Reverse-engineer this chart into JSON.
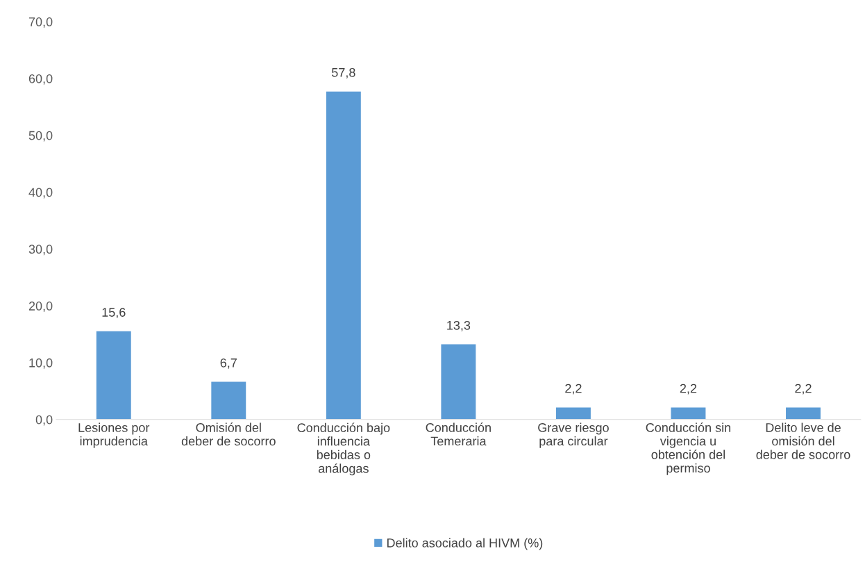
{
  "chart_data": {
    "type": "bar",
    "categories": [
      "Lesiones por imprudencia",
      "Omisión del deber de socorro",
      "Conducción bajo influencia bebidas o análogas",
      "Conducción Temeraria",
      "Grave riesgo para circular",
      "Conducción sin vigencia u obtención del permiso",
      "Delito leve de omisión del deber de socorro"
    ],
    "series": [
      {
        "name": "Delito asociado al HIVM (%)",
        "color": "#5b9bd5",
        "values": [
          15.6,
          6.7,
          57.8,
          13.3,
          2.2,
          2.2,
          2.2
        ],
        "value_labels": [
          "15,6",
          "6,7",
          "57,8",
          "13,3",
          "2,2",
          "2,2",
          "2,2"
        ]
      }
    ],
    "ylim": [
      0,
      70
    ],
    "yticks": [
      {
        "value": 0,
        "label": "0,0"
      },
      {
        "value": 10,
        "label": "10,0"
      },
      {
        "value": 20,
        "label": "20,0"
      },
      {
        "value": 30,
        "label": "30,0"
      },
      {
        "value": 40,
        "label": "40,0"
      },
      {
        "value": 50,
        "label": "50,0"
      },
      {
        "value": 60,
        "label": "60,0"
      },
      {
        "value": 70,
        "label": "70,0"
      }
    ],
    "grid": false,
    "legend": "bottom"
  }
}
